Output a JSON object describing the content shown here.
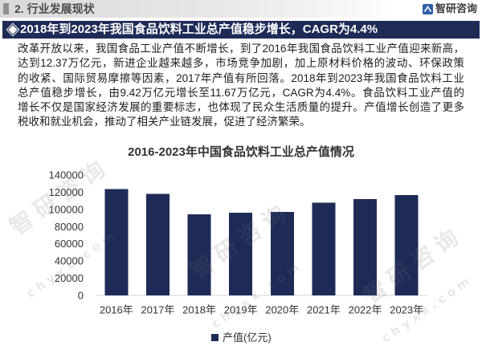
{
  "header": {
    "section_title": "2. 行业发展现状",
    "brand_name": "智研咨询",
    "brand_icon": "zhiyan-logo-icon"
  },
  "banner": {
    "icon": "diamond-icon",
    "headline": "2018年到2023年我国食品饮料工业总产值稳步增长，CAGR为4.4%"
  },
  "intro": {
    "lines": [
      "改革开放以来，我国食品工业产值不断增长，到了2016年我国食品饮料工业产值迎来新高，",
      "达到12.37万亿元，新进企业越来越多，市场竞争加剧，加上原材料价格的波动、环保政策",
      "的收紧、国际贸易摩擦等因素，2017年产值有所回落。2018年到2023年我国食品饮料工业",
      "总产值稳步增长，由9.42万亿元增长至11.67万亿元，CAGR为4.4%。食品饮料工业产值的",
      "增长不仅是国家经济发展的重要标志，也体现了民众生活质量的提升。产值增长创造了更多",
      "税收和就业机会，推动了相关产业链发展，促进了经济繁荣。"
    ]
  },
  "watermark": {
    "brand": "智研咨询",
    "site": "chyxx.com"
  },
  "colors": {
    "navy": "#1e2b57",
    "header_gray": "#d9d9d9",
    "text": "#222222"
  },
  "chart_data": {
    "type": "bar",
    "title": "2016-2023年中国食品饮料工业总产值情况",
    "categories": [
      "2016年",
      "2017年",
      "2018年",
      "2019年",
      "2020年",
      "2021年",
      "2022年",
      "2023年"
    ],
    "series": [
      {
        "name": "产值(亿元)",
        "color": "#1e2b57",
        "values": [
          123700,
          118000,
          94200,
          96000,
          97000,
          108000,
          112000,
          116700
        ]
      }
    ],
    "ylim": [
      0,
      140000
    ],
    "yticks": [
      0,
      20000,
      40000,
      60000,
      80000,
      100000,
      120000,
      140000
    ],
    "grid": false,
    "legend": "bottom"
  }
}
